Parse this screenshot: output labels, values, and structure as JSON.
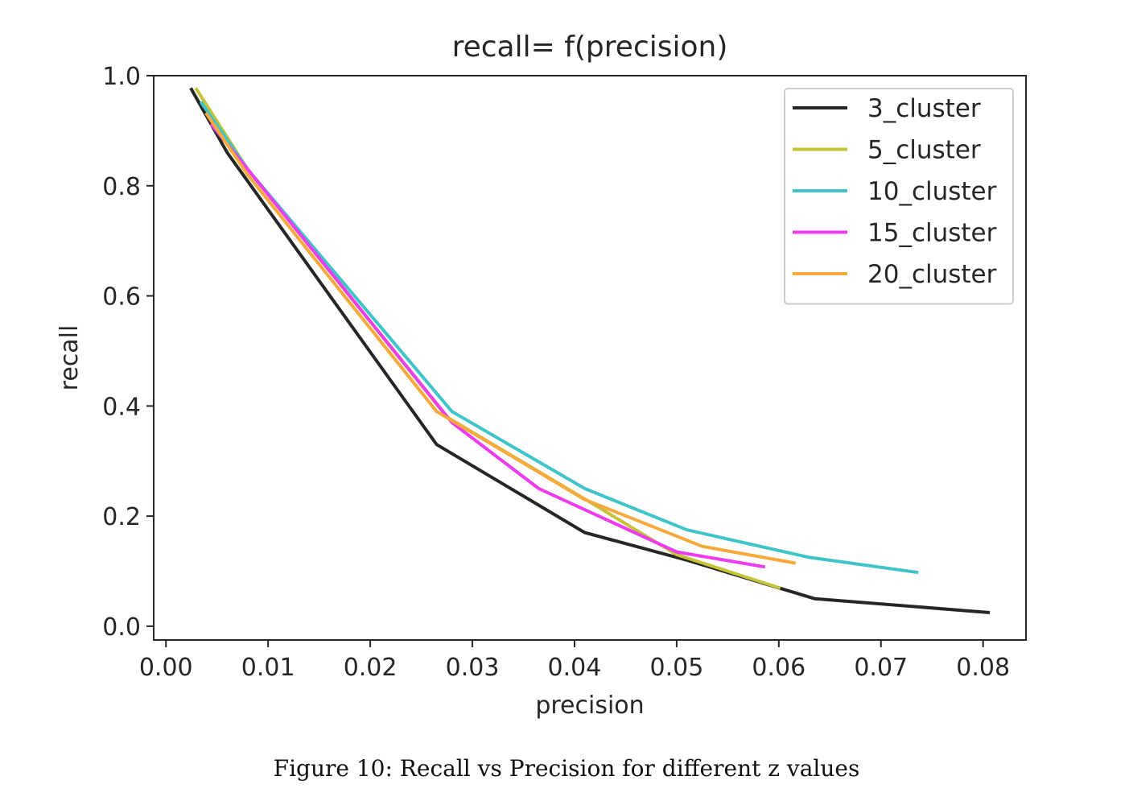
{
  "chart_data": {
    "type": "line",
    "title": "recall= f(precision)",
    "xlabel": "precision",
    "ylabel": "recall",
    "xlim": [
      -0.0012,
      0.0842
    ],
    "ylim": [
      -0.025,
      1.0
    ],
    "xticks": [
      0.0,
      0.01,
      0.02,
      0.03,
      0.04,
      0.05,
      0.06,
      0.07,
      0.08
    ],
    "xtick_labels": [
      "0.00",
      "0.01",
      "0.02",
      "0.03",
      "0.04",
      "0.05",
      "0.06",
      "0.07",
      "0.08"
    ],
    "yticks": [
      0.0,
      0.2,
      0.4,
      0.6,
      0.8,
      1.0
    ],
    "ytick_labels": [
      "0.0",
      "0.2",
      "0.4",
      "0.6",
      "0.8",
      "1.0"
    ],
    "grid": false,
    "legend_position": "top-right",
    "series": [
      {
        "name": "3_cluster",
        "color": "#262626",
        "x": [
          0.0025,
          0.006,
          0.0265,
          0.041,
          0.051,
          0.0635,
          0.0805
        ],
        "y": [
          0.975,
          0.86,
          0.33,
          0.17,
          0.12,
          0.05,
          0.025
        ]
      },
      {
        "name": "5_cluster",
        "color": "#c5c33a",
        "x": [
          0.003,
          0.008,
          0.0275,
          0.042,
          0.05,
          0.06
        ],
        "y": [
          0.975,
          0.83,
          0.38,
          0.22,
          0.13,
          0.07
        ]
      },
      {
        "name": "10_cluster",
        "color": "#3fc4c9",
        "x": [
          0.0035,
          0.008,
          0.028,
          0.041,
          0.051,
          0.063,
          0.0735
        ],
        "y": [
          0.95,
          0.83,
          0.39,
          0.25,
          0.175,
          0.125,
          0.098
        ]
      },
      {
        "name": "15_cluster",
        "color": "#ee3bee",
        "x": [
          0.0045,
          0.008,
          0.028,
          0.0365,
          0.05,
          0.0585
        ],
        "y": [
          0.91,
          0.83,
          0.37,
          0.25,
          0.135,
          0.108
        ]
      },
      {
        "name": "20_cluster",
        "color": "#f7a93c",
        "x": [
          0.004,
          0.008,
          0.0265,
          0.041,
          0.0525,
          0.0615
        ],
        "y": [
          0.93,
          0.82,
          0.39,
          0.23,
          0.145,
          0.115
        ]
      }
    ]
  },
  "caption": "Figure 10: Recall vs Precision for different z values"
}
